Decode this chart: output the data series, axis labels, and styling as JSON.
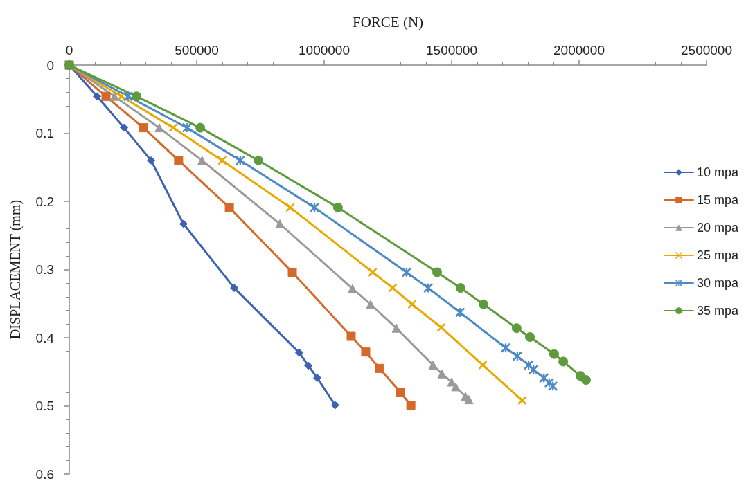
{
  "chart_data": {
    "type": "line",
    "xlabel": "FORCE (N)",
    "ylabel": "DISPLACEMENT (mm)",
    "xlim": [
      0,
      2500000
    ],
    "xticks": [
      0,
      500000,
      1000000,
      1500000,
      2000000,
      2500000
    ],
    "ylim": [
      0.6,
      0
    ],
    "yticks": [
      0,
      0.1,
      0.2,
      0.3,
      0.4,
      0.5,
      0.6
    ],
    "grid": false,
    "legend": "right",
    "series": [
      {
        "name": "10 mpa",
        "color": "#3c62b0",
        "marker": "diamond",
        "x": [
          0,
          109000,
          215000,
          321000,
          448000,
          647000,
          902000,
          938000,
          973000,
          1043000
        ],
        "values": [
          0,
          0.046,
          0.092,
          0.14,
          0.233,
          0.327,
          0.422,
          0.441,
          0.459,
          0.499
        ]
      },
      {
        "name": "15 mpa",
        "color": "#d4692a",
        "marker": "square",
        "x": [
          0,
          144000,
          291000,
          429000,
          628000,
          875000,
          1106000,
          1163000,
          1217000,
          1299000,
          1340000
        ],
        "values": [
          0,
          0.046,
          0.092,
          0.14,
          0.209,
          0.304,
          0.398,
          0.421,
          0.445,
          0.48,
          0.499
        ]
      },
      {
        "name": "20 mpa",
        "color": "#9a9a9a",
        "marker": "triangle",
        "x": [
          0,
          177000,
          353000,
          521000,
          826000,
          1111000,
          1182000,
          1283000,
          1427000,
          1462000,
          1500000,
          1516000,
          1554000,
          1568000
        ],
        "values": [
          0,
          0.046,
          0.092,
          0.14,
          0.233,
          0.328,
          0.351,
          0.386,
          0.44,
          0.453,
          0.465,
          0.472,
          0.486,
          0.491
        ]
      },
      {
        "name": "25 mpa",
        "color": "#e8a800",
        "marker": "cross",
        "x": [
          0,
          204000,
          408000,
          600000,
          867000,
          1190000,
          1269000,
          1345000,
          1459000,
          1622000,
          1777000
        ],
        "values": [
          0,
          0.046,
          0.092,
          0.14,
          0.209,
          0.304,
          0.327,
          0.351,
          0.385,
          0.44,
          0.492
        ]
      },
      {
        "name": "30 mpa",
        "color": "#4e8ac5",
        "marker": "star",
        "x": [
          0,
          231000,
          462000,
          671000,
          962000,
          1323000,
          1408000,
          1533000,
          1712000,
          1758000,
          1802000,
          1821000,
          1862000,
          1883000,
          1897000
        ],
        "values": [
          0,
          0.046,
          0.092,
          0.14,
          0.209,
          0.304,
          0.327,
          0.363,
          0.415,
          0.427,
          0.44,
          0.447,
          0.459,
          0.466,
          0.471
        ]
      },
      {
        "name": "35 mpa",
        "color": "#5e9b3c",
        "marker": "circle",
        "x": [
          0,
          264000,
          514000,
          742000,
          1054000,
          1443000,
          1535000,
          1625000,
          1755000,
          1807000,
          1902000,
          1938000,
          2005000,
          2027000
        ],
        "values": [
          0,
          0.046,
          0.092,
          0.14,
          0.209,
          0.304,
          0.327,
          0.351,
          0.386,
          0.399,
          0.424,
          0.435,
          0.456,
          0.462
        ]
      }
    ]
  }
}
